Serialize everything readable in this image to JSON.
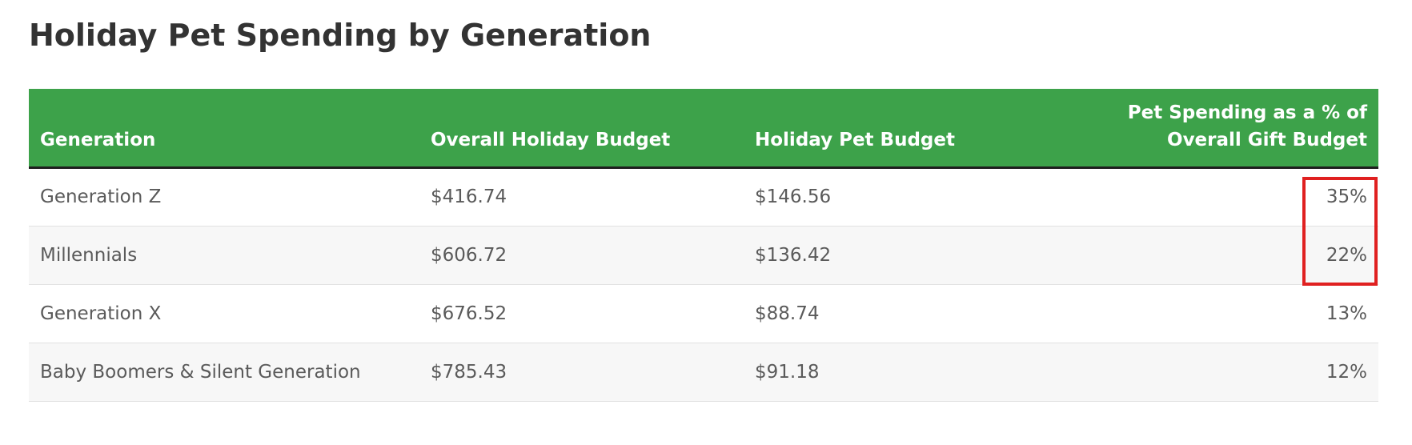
{
  "chart_data": {
    "type": "table",
    "title": "Holiday Pet Spending by Generation",
    "columns": [
      "Generation",
      "Overall Holiday Budget",
      "Holiday Pet Budget",
      [
        "Pet Spending as a % of",
        "Overall Gift Budget"
      ]
    ],
    "rows": [
      [
        "Generation Z",
        "$416.74",
        "$146.56",
        "35%"
      ],
      [
        "Millennials",
        "$606.72",
        "$136.42",
        "22%"
      ],
      [
        "Generation X",
        "$676.52",
        "$88.74",
        "13%"
      ],
      [
        "Baby Boomers & Silent Generation",
        "$785.43",
        "$91.18",
        "12%"
      ]
    ],
    "highlighted_cells": [
      [
        0,
        3
      ],
      [
        1,
        3
      ]
    ],
    "header_color": "#3da24a",
    "highlight_color": "#e02020"
  }
}
